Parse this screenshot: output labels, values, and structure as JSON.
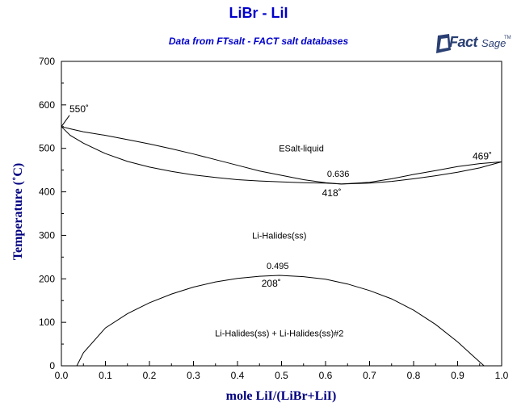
{
  "chart_data": {
    "type": "line",
    "title": "LiBr - LiI",
    "subtitle": "Data from FTsalt - FACT salt databases",
    "logo": {
      "main": "Fact",
      "secondary": "Sage",
      "mark": "TM"
    },
    "xlabel": "mole LiI/(LiBr+LiI)",
    "ylabel": "Temperature (˚C)",
    "xlim": [
      0,
      1
    ],
    "ylim": [
      0,
      700
    ],
    "x_ticks": [
      "0.0",
      "0.1",
      "0.2",
      "0.3",
      "0.4",
      "0.5",
      "0.6",
      "0.7",
      "0.8",
      "0.9",
      "1.0"
    ],
    "y_ticks": [
      "0",
      "100",
      "200",
      "300",
      "400",
      "500",
      "600",
      "700"
    ],
    "grid": false,
    "series": [
      {
        "x": [
          0.0,
          0.02,
          0.05,
          0.1,
          0.15,
          0.2,
          0.25,
          0.3,
          0.35,
          0.4,
          0.45,
          0.5,
          0.55,
          0.6,
          0.636,
          0.7,
          0.75,
          0.8,
          0.85,
          0.9,
          0.95,
          1.0
        ],
        "y": [
          550,
          545,
          538,
          530,
          520,
          510,
          499,
          487,
          474,
          461,
          448,
          438,
          428,
          421,
          418,
          422,
          430,
          440,
          449,
          458,
          465,
          469
        ]
      },
      {
        "x": [
          0.0,
          0.02,
          0.05,
          0.1,
          0.15,
          0.2,
          0.25,
          0.3,
          0.35,
          0.4,
          0.45,
          0.5,
          0.55,
          0.6,
          0.636,
          0.7,
          0.75,
          0.8,
          0.85,
          0.9,
          0.95,
          1.0
        ],
        "y": [
          550,
          530,
          512,
          488,
          470,
          457,
          447,
          439,
          433,
          428,
          425,
          423,
          421,
          420,
          418,
          420,
          424,
          430,
          437,
          445,
          455,
          469
        ]
      },
      {
        "x": [
          0.035,
          0.05,
          0.1,
          0.15,
          0.2,
          0.25,
          0.3,
          0.35,
          0.4,
          0.45,
          0.495,
          0.55,
          0.6,
          0.65,
          0.7,
          0.75,
          0.8,
          0.85,
          0.9,
          0.94,
          0.96
        ],
        "y": [
          0,
          30,
          87,
          120,
          145,
          165,
          181,
          193,
          201,
          206,
          208,
          205,
          199,
          188,
          173,
          154,
          128,
          95,
          55,
          18,
          0
        ]
      }
    ],
    "annotations": [
      {
        "text": "550˚",
        "x": 0.0,
        "y": 550,
        "kind": "point"
      },
      {
        "text": "469˚",
        "x": 1.0,
        "y": 469,
        "kind": "point"
      },
      {
        "text": "0.636",
        "x": 0.636,
        "y": 418,
        "kind": "coord"
      },
      {
        "text": "418˚",
        "x": 0.636,
        "y": 418,
        "kind": "point"
      },
      {
        "text": "0.495",
        "x": 0.495,
        "y": 208,
        "kind": "coord"
      },
      {
        "text": "208˚",
        "x": 0.495,
        "y": 208,
        "kind": "point"
      }
    ],
    "regions": [
      {
        "text": "ESalt-liquid",
        "x": 0.545,
        "y": 500
      },
      {
        "text": "Li-Halides(ss)",
        "x": 0.495,
        "y": 300
      },
      {
        "text": "Li-Halides(ss) + Li-Halides(ss)#2",
        "x": 0.495,
        "y": 75
      }
    ]
  }
}
